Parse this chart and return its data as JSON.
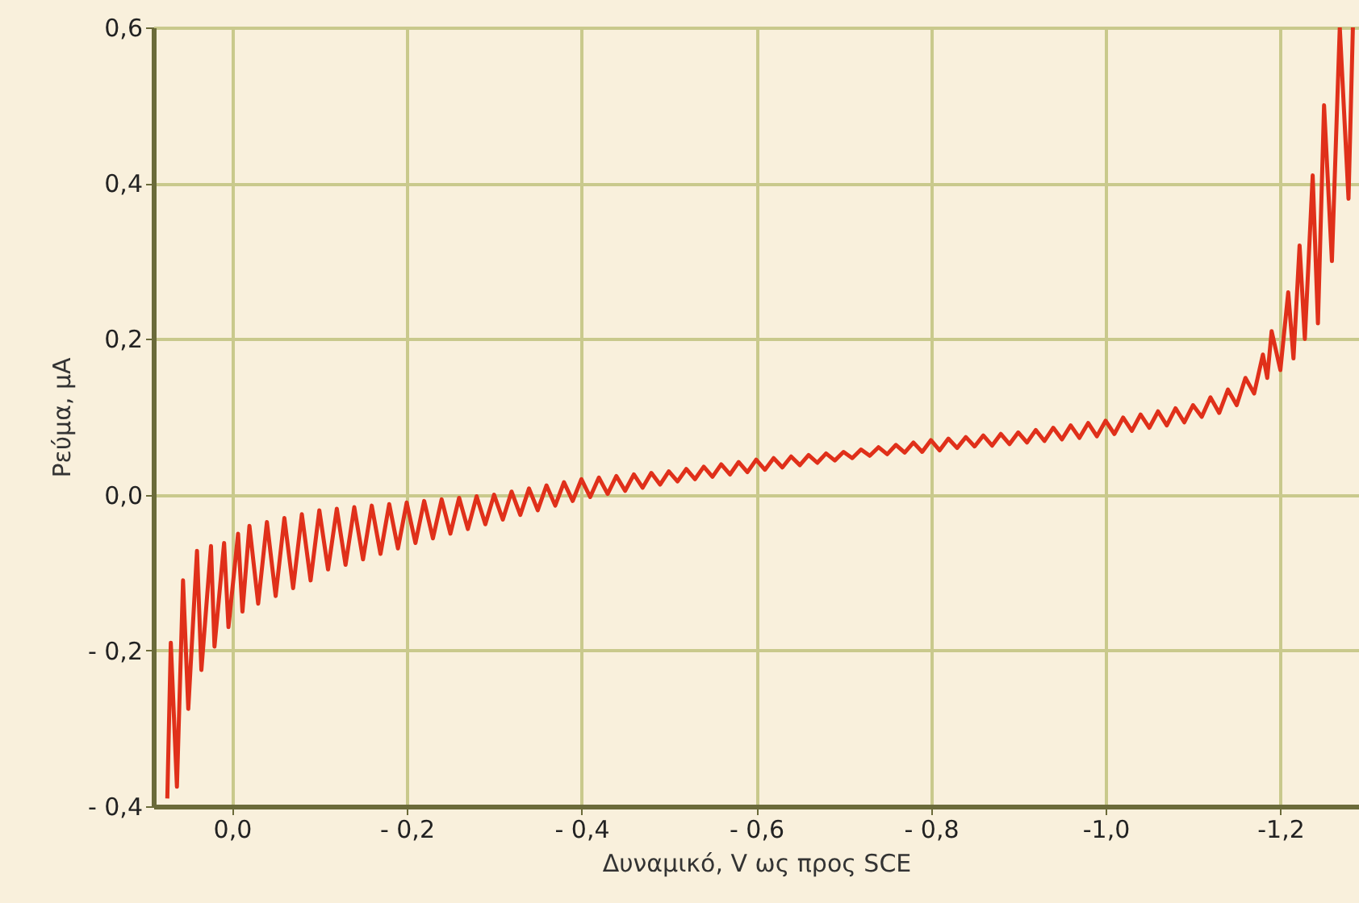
{
  "chart_data": {
    "type": "line",
    "xlabel": "Δυναμικό, V ως προς SCE",
    "ylabel": "Ρεύμα, μA",
    "xlim": [
      0.09,
      -1.29
    ],
    "ylim": [
      -0.4,
      0.6
    ],
    "xticks": [
      {
        "value": 0,
        "label": "0,0"
      },
      {
        "value": -0.2,
        "label": "- 0,2"
      },
      {
        "value": -0.4,
        "label": "- 0,4"
      },
      {
        "value": -0.6,
        "label": "- 0,6"
      },
      {
        "value": -0.8,
        "label": "- 0,8"
      },
      {
        "value": -1.0,
        "label": "-1,0"
      },
      {
        "value": -1.2,
        "label": "-1,2"
      }
    ],
    "yticks": [
      {
        "value": -0.4,
        "label": "- 0,4"
      },
      {
        "value": -0.2,
        "label": "- 0,2"
      },
      {
        "value": 0,
        "label": "0,0"
      },
      {
        "value": 0.2,
        "label": "0,2"
      },
      {
        "value": 0.4,
        "label": "0,4"
      },
      {
        "value": 0.6,
        "label": "0,6"
      }
    ],
    "grid": true,
    "marker": "none",
    "line_style": "solid",
    "series": [
      {
        "color": "#e0301a",
        "x": [
          0.074,
          0.07,
          0.063,
          0.056,
          0.05,
          0.04,
          0.035,
          0.024,
          0.02,
          0.009,
          0.004,
          -0.007,
          -0.012,
          -0.02,
          -0.03,
          -0.04,
          -0.05,
          -0.06,
          -0.07,
          -0.08,
          -0.09,
          -0.1,
          -0.11,
          -0.12,
          -0.13,
          -0.14,
          -0.15,
          -0.16,
          -0.17,
          -0.18,
          -0.19,
          -0.2,
          -0.21,
          -0.22,
          -0.23,
          -0.24,
          -0.25,
          -0.26,
          -0.27,
          -0.28,
          -0.29,
          -0.3,
          -0.31,
          -0.32,
          -0.33,
          -0.34,
          -0.35,
          -0.36,
          -0.37,
          -0.38,
          -0.39,
          -0.4,
          -0.41,
          -0.42,
          -0.43,
          -0.44,
          -0.45,
          -0.46,
          -0.47,
          -0.48,
          -0.49,
          -0.5,
          -0.51,
          -0.52,
          -0.53,
          -0.54,
          -0.55,
          -0.56,
          -0.57,
          -0.58,
          -0.59,
          -0.6,
          -0.61,
          -0.62,
          -0.63,
          -0.64,
          -0.65,
          -0.66,
          -0.67,
          -0.68,
          -0.69,
          -0.7,
          -0.71,
          -0.72,
          -0.73,
          -0.74,
          -0.75,
          -0.76,
          -0.77,
          -0.78,
          -0.79,
          -0.8,
          -0.81,
          -0.82,
          -0.83,
          -0.84,
          -0.85,
          -0.86,
          -0.87,
          -0.88,
          -0.89,
          -0.9,
          -0.91,
          -0.92,
          -0.93,
          -0.94,
          -0.95,
          -0.96,
          -0.97,
          -0.98,
          -0.99,
          -1.0,
          -1.01,
          -1.02,
          -1.03,
          -1.04,
          -1.05,
          -1.06,
          -1.07,
          -1.08,
          -1.09,
          -1.1,
          -1.11,
          -1.12,
          -1.13,
          -1.14,
          -1.15,
          -1.16,
          -1.17,
          -1.18,
          -1.185,
          -1.19,
          -1.2,
          -1.209,
          -1.215,
          -1.222,
          -1.228,
          -1.237,
          -1.243,
          -1.25,
          -1.259,
          -1.268,
          -1.278,
          -1.283
        ],
        "values": [
          -0.39,
          -0.19,
          -0.375,
          -0.11,
          -0.275,
          -0.072,
          -0.225,
          -0.066,
          -0.195,
          -0.062,
          -0.17,
          -0.05,
          -0.15,
          -0.04,
          -0.14,
          -0.035,
          -0.13,
          -0.03,
          -0.12,
          -0.025,
          -0.11,
          -0.02,
          -0.096,
          -0.018,
          -0.09,
          -0.016,
          -0.083,
          -0.014,
          -0.076,
          -0.012,
          -0.069,
          -0.01,
          -0.062,
          -0.008,
          -0.056,
          -0.006,
          -0.05,
          -0.004,
          -0.044,
          -0.002,
          -0.038,
          0.0,
          -0.032,
          0.004,
          -0.026,
          0.008,
          -0.02,
          0.012,
          -0.014,
          0.016,
          -0.008,
          0.02,
          -0.003,
          0.022,
          0.001,
          0.024,
          0.005,
          0.026,
          0.009,
          0.028,
          0.013,
          0.03,
          0.017,
          0.033,
          0.02,
          0.036,
          0.023,
          0.039,
          0.026,
          0.042,
          0.029,
          0.045,
          0.032,
          0.047,
          0.035,
          0.049,
          0.038,
          0.051,
          0.041,
          0.053,
          0.044,
          0.055,
          0.047,
          0.058,
          0.05,
          0.061,
          0.052,
          0.064,
          0.054,
          0.067,
          0.055,
          0.07,
          0.057,
          0.072,
          0.06,
          0.074,
          0.062,
          0.076,
          0.063,
          0.078,
          0.065,
          0.08,
          0.067,
          0.083,
          0.069,
          0.086,
          0.071,
          0.089,
          0.073,
          0.092,
          0.075,
          0.095,
          0.078,
          0.099,
          0.082,
          0.103,
          0.086,
          0.107,
          0.089,
          0.111,
          0.093,
          0.115,
          0.1,
          0.125,
          0.105,
          0.135,
          0.115,
          0.15,
          0.13,
          0.18,
          0.15,
          0.21,
          0.16,
          0.26,
          0.175,
          0.32,
          0.2,
          0.41,
          0.22,
          0.5,
          0.3,
          0.6,
          0.38,
          0.6
        ]
      }
    ]
  }
}
